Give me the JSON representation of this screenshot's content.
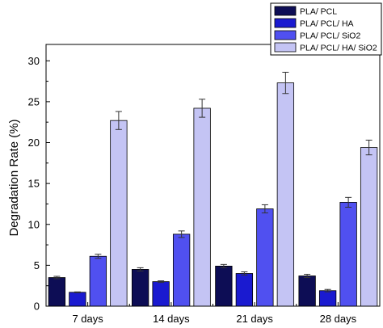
{
  "chart_data": {
    "type": "bar",
    "title": "",
    "xlabel": "",
    "ylabel": "Degradation Rate (%)",
    "ylim": [
      0,
      32
    ],
    "yticks": [
      0,
      5,
      10,
      15,
      20,
      25,
      30
    ],
    "categories": [
      "7 days",
      "14 days",
      "21 days",
      "28 days"
    ],
    "legend_position": "top-right",
    "grid": false,
    "series": [
      {
        "name": "PLA/ PCL",
        "color": "#0d0d55",
        "values": [
          3.5,
          4.5,
          4.9,
          3.7
        ],
        "errors": [
          0.15,
          0.2,
          0.2,
          0.2
        ]
      },
      {
        "name": "PLA/ PCL/ HA",
        "color": "#1a1ad0",
        "values": [
          1.7,
          3.0,
          4.0,
          1.9
        ],
        "errors": [
          0.05,
          0.1,
          0.2,
          0.15
        ]
      },
      {
        "name": "PLA/ PCL/ SiO2",
        "color": "#5050f0",
        "values": [
          6.1,
          8.8,
          11.9,
          12.7
        ],
        "errors": [
          0.25,
          0.4,
          0.5,
          0.6
        ]
      },
      {
        "name": "PLA/ PCL/ HA/ SiO2",
        "color": "#c4c4f4",
        "values": [
          22.7,
          24.2,
          27.3,
          19.4
        ],
        "errors": [
          1.1,
          1.1,
          1.3,
          0.9
        ]
      }
    ]
  }
}
